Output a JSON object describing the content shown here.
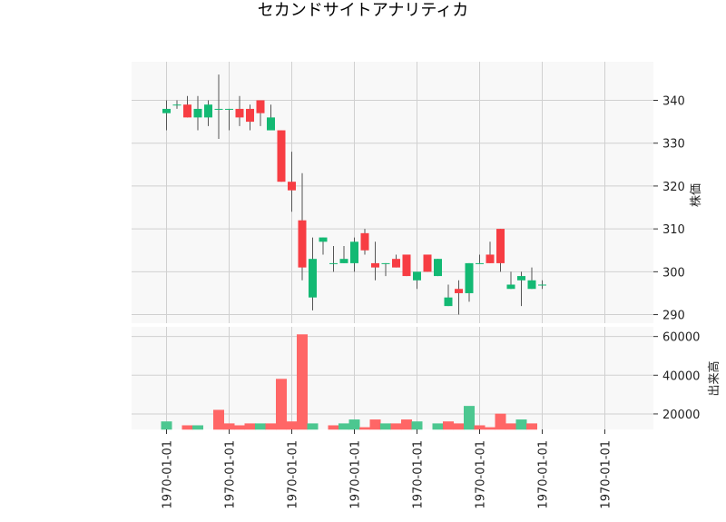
{
  "chart_data": {
    "type": "candlestick",
    "title": "セカンドサイトアナリティカ",
    "x_tick_labels": [
      "1970-01-01",
      "1970-01-01",
      "1970-01-01",
      "1970-01-01",
      "1970-01-01",
      "1970-01-01",
      "1970-01-01",
      "1970-01-01"
    ],
    "price_panel": {
      "ylabel": "株価",
      "ylim": [
        288,
        349
      ],
      "yticks": [
        290,
        300,
        310,
        320,
        330,
        340
      ],
      "up_color": "#13b973",
      "down_color": "#f73d43",
      "wick_color": "#555555",
      "candles": [
        {
          "o": 337,
          "h": 340,
          "l": 333,
          "c": 338
        },
        {
          "o": 339,
          "h": 340,
          "l": 338,
          "c": 339
        },
        {
          "o": 339,
          "h": 341,
          "l": 336,
          "c": 336
        },
        {
          "o": 336,
          "h": 341,
          "l": 333,
          "c": 338
        },
        {
          "o": 336,
          "h": 340,
          "l": 334,
          "c": 339
        },
        {
          "o": 338,
          "h": 346,
          "l": 331,
          "c": 338
        },
        {
          "o": 338,
          "h": 338,
          "l": 333,
          "c": 338
        },
        {
          "o": 338,
          "h": 341,
          "l": 334,
          "c": 336
        },
        {
          "o": 338,
          "h": 339,
          "l": 333,
          "c": 335
        },
        {
          "o": 340,
          "h": 340,
          "l": 334,
          "c": 337
        },
        {
          "o": 333,
          "h": 339,
          "l": 333,
          "c": 336
        },
        {
          "o": 333,
          "h": 333,
          "l": 321,
          "c": 321
        },
        {
          "o": 321,
          "h": 328,
          "l": 314,
          "c": 319
        },
        {
          "o": 312,
          "h": 323,
          "l": 298,
          "c": 301
        },
        {
          "o": 294,
          "h": 308,
          "l": 291,
          "c": 303
        },
        {
          "o": 307,
          "h": 308,
          "l": 304,
          "c": 308
        },
        {
          "o": 302,
          "h": 306,
          "l": 300,
          "c": 302
        },
        {
          "o": 302,
          "h": 306,
          "l": 302,
          "c": 303
        },
        {
          "o": 302,
          "h": 308,
          "l": 300,
          "c": 307
        },
        {
          "o": 309,
          "h": 310,
          "l": 304,
          "c": 305
        },
        {
          "o": 302,
          "h": 307,
          "l": 298,
          "c": 301
        },
        {
          "o": 302,
          "h": 302,
          "l": 299,
          "c": 302
        },
        {
          "o": 303,
          "h": 304,
          "l": 301,
          "c": 301
        },
        {
          "o": 304,
          "h": 304,
          "l": 299,
          "c": 299
        },
        {
          "o": 298,
          "h": 300,
          "l": 296,
          "c": 300
        },
        {
          "o": 304,
          "h": 304,
          "l": 300,
          "c": 300
        },
        {
          "o": 299,
          "h": 303,
          "l": 299,
          "c": 303
        },
        {
          "o": 292,
          "h": 297,
          "l": 292,
          "c": 294
        },
        {
          "o": 296,
          "h": 298,
          "l": 290,
          "c": 295
        },
        {
          "o": 295,
          "h": 302,
          "l": 293,
          "c": 302
        },
        {
          "o": 302,
          "h": 304,
          "l": 302,
          "c": 302
        },
        {
          "o": 304,
          "h": 307,
          "l": 302,
          "c": 302
        },
        {
          "o": 310,
          "h": 310,
          "l": 300,
          "c": 302
        },
        {
          "o": 296,
          "h": 300,
          "l": 296,
          "c": 297
        },
        {
          "o": 298,
          "h": 300,
          "l": 292,
          "c": 299
        },
        {
          "o": 296,
          "h": 301,
          "l": 296,
          "c": 298
        },
        {
          "o": 297,
          "h": 298,
          "l": 296,
          "c": 297
        }
      ]
    },
    "volume_panel": {
      "ylabel": "出来高",
      "ylim": [
        12000,
        65000
      ],
      "yticks": [
        20000,
        40000,
        60000
      ],
      "up_color": "#4cc790",
      "down_color": "#ff6666",
      "values": [
        16000,
        12000,
        14000,
        14000,
        11000,
        22000,
        15000,
        14000,
        15000,
        15000,
        15000,
        38000,
        16000,
        61000,
        15000,
        11000,
        14000,
        15000,
        17000,
        13000,
        17000,
        15000,
        15000,
        17000,
        16000,
        12000,
        15000,
        16000,
        15000,
        24000,
        14000,
        13000,
        20000,
        15000,
        17000,
        15000,
        11000
      ],
      "direction": [
        "up",
        "up",
        "down",
        "up",
        "up",
        "down",
        "down",
        "down",
        "down",
        "up",
        "down",
        "down",
        "down",
        "down",
        "up",
        "up",
        "down",
        "up",
        "up",
        "down",
        "down",
        "up",
        "down",
        "down",
        "up",
        "down",
        "up",
        "down",
        "down",
        "up",
        "down",
        "down",
        "down",
        "down",
        "up",
        "down",
        "down"
      ]
    }
  }
}
